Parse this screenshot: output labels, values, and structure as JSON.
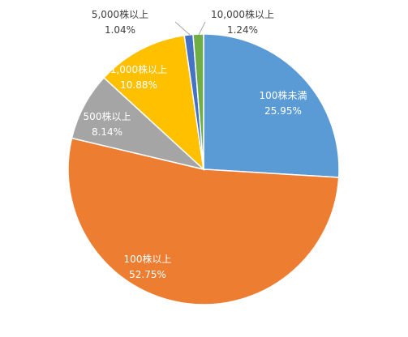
{
  "chart_data": {
    "type": "pie",
    "categories": [
      "100株未満",
      "100株以上",
      "500株以上",
      "1,000株以上",
      "5,000株以上",
      "10,000株以上"
    ],
    "values": [
      25.95,
      52.75,
      8.14,
      10.88,
      1.04,
      1.24
    ],
    "value_labels": [
      "25.95%",
      "52.75%",
      "8.14%",
      "10.88%",
      "1.04%",
      "1.24%"
    ],
    "colors": [
      "#5B9BD5",
      "#ED7D31",
      "#A5A5A5",
      "#FFC000",
      "#4472C4",
      "#70AD47"
    ],
    "start": "12 o'clock",
    "direction": "clockwise",
    "legend": "none"
  }
}
